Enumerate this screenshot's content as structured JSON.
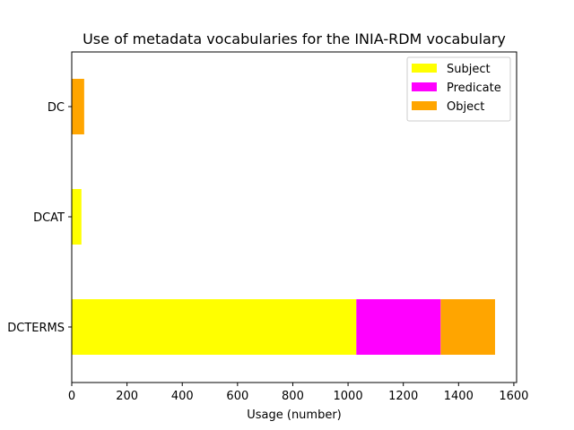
{
  "chart_data": {
    "type": "bar",
    "orientation": "horizontal",
    "stacked": true,
    "title": "Use of metadata vocabularies for the INIA-RDM vocabulary",
    "xlabel": "Usage (number)",
    "ylabel": "",
    "xlim": [
      0,
      1610
    ],
    "xticks": [
      0,
      200,
      400,
      600,
      800,
      1000,
      1200,
      1400,
      1600
    ],
    "categories": [
      "DCTERMS",
      "DCAT",
      "DC"
    ],
    "series": [
      {
        "name": "Subject",
        "color": "#ffff00",
        "values": [
          1030,
          35,
          0
        ]
      },
      {
        "name": "Predicate",
        "color": "#ff00ff",
        "values": [
          305,
          0,
          0
        ]
      },
      {
        "name": "Object",
        "color": "#ffa500",
        "values": [
          197,
          0,
          45
        ]
      }
    ],
    "legend": "top-right",
    "grid": false
  }
}
